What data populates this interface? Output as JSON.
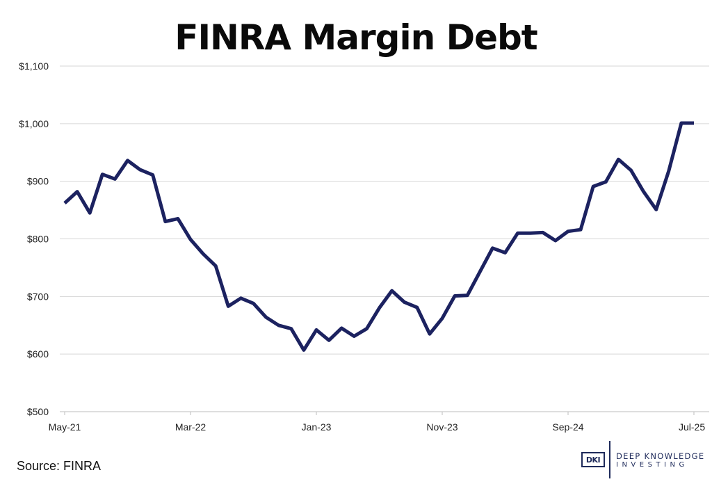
{
  "chart_data": {
    "type": "line",
    "title": "FINRA Margin Debt",
    "xlabel": "",
    "ylabel": "",
    "ylim": [
      500,
      1100
    ],
    "yticks": [
      "$500",
      "$600",
      "$700",
      "$800",
      "$900",
      "$1,000",
      "$1,100"
    ],
    "x_tick_labels": [
      "May-21",
      "Mar-22",
      "Jan-23",
      "Nov-23",
      "Sep-24",
      "Jul-25"
    ],
    "grid": "horizontal",
    "legend": "none",
    "line_color": "#1c2260",
    "series": [
      {
        "x": [
          "May-21",
          "Jun-21",
          "Jul-21",
          "Aug-21",
          "Sep-21",
          "Oct-21",
          "Nov-21",
          "Dec-21",
          "Jan-22",
          "Feb-22",
          "Mar-22",
          "Apr-22",
          "May-22",
          "Jun-22",
          "Jul-22",
          "Aug-22",
          "Sep-22",
          "Oct-22",
          "Nov-22",
          "Dec-22",
          "Jan-23",
          "Feb-23",
          "Mar-23",
          "Apr-23",
          "May-23",
          "Jun-23",
          "Jul-23",
          "Aug-23",
          "Sep-23",
          "Oct-23",
          "Nov-23",
          "Dec-23",
          "Jan-24",
          "Feb-24",
          "Mar-24",
          "Apr-24",
          "May-24",
          "Jun-24",
          "Jul-24",
          "Aug-24",
          "Sep-24",
          "Oct-24",
          "Nov-24",
          "Dec-24",
          "Jan-25",
          "Feb-25",
          "Mar-25",
          "Apr-25",
          "May-25",
          "Jun-25",
          "Jul-25"
        ],
        "values": [
          862,
          882,
          845,
          912,
          904,
          936,
          920,
          911,
          830,
          835,
          799,
          774,
          753,
          683,
          697,
          688,
          664,
          650,
          644,
          607,
          642,
          624,
          645,
          631,
          644,
          680,
          710,
          690,
          681,
          635,
          662,
          701,
          702,
          743,
          784,
          776,
          810,
          810,
          811,
          797,
          813,
          816,
          891,
          899,
          938,
          919,
          882,
          851,
          918,
          1001,
          1001
        ]
      }
    ]
  },
  "source": "Source: FINRA",
  "logo": {
    "mark": "DKI",
    "line1": "DEEP KNOWLEDGE",
    "line2": "INVESTING"
  }
}
